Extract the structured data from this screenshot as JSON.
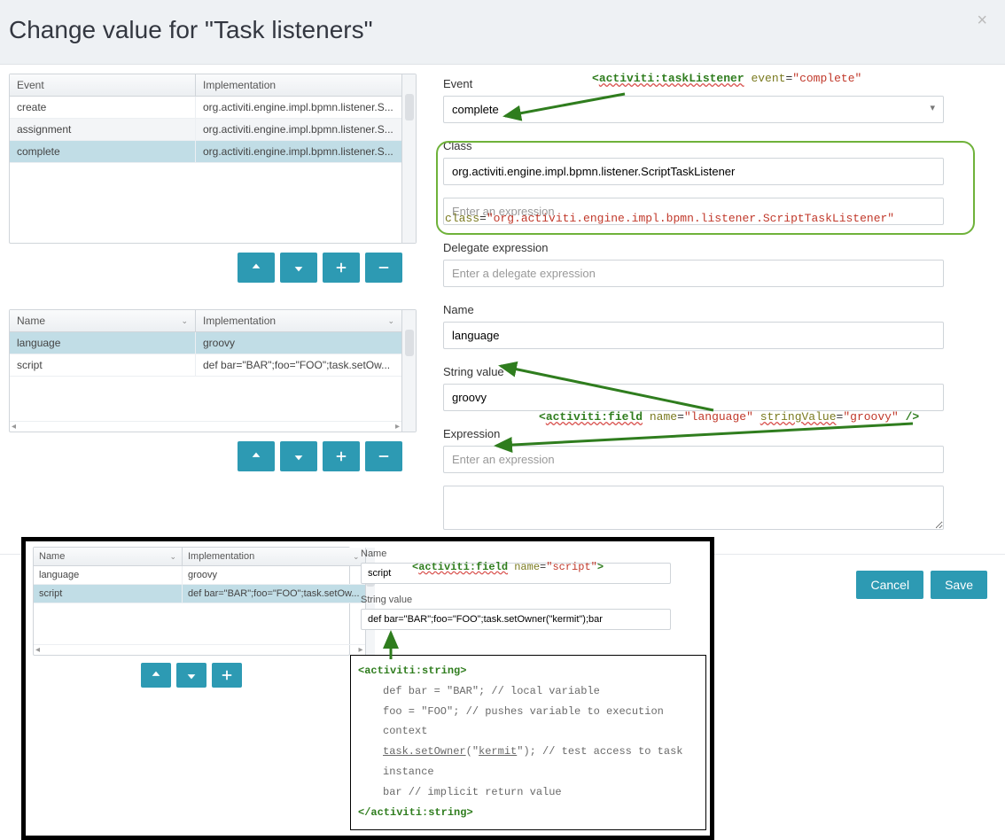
{
  "colors": {
    "primary": "#2d9ab3",
    "header_bg": "#eef1f4",
    "selected": "#c1dde6",
    "alt_row": "#f3f5f7",
    "green": "#6fb23a",
    "red": "#c1392b"
  },
  "dialog": {
    "title": "Change value for \"Task listeners\""
  },
  "grid1": {
    "cols": [
      "Event",
      "Implementation"
    ],
    "rows": [
      {
        "event": "create",
        "impl": "org.activiti.engine.impl.bpmn.listener.S...",
        "selected": false,
        "alt": false
      },
      {
        "event": "assignment",
        "impl": "org.activiti.engine.impl.bpmn.listener.S...",
        "selected": false,
        "alt": true
      },
      {
        "event": "complete",
        "impl": "org.activiti.engine.impl.bpmn.listener.S...",
        "selected": true,
        "alt": false
      }
    ]
  },
  "grid2": {
    "cols": [
      "Name",
      "Implementation"
    ],
    "rows": [
      {
        "name": "language",
        "impl": "groovy",
        "selected": true,
        "alt": false
      },
      {
        "name": "script",
        "impl": "def bar=\"BAR\";foo=\"FOO\";task.setOw...",
        "selected": false,
        "alt": false
      }
    ]
  },
  "form": {
    "event_label": "Event",
    "event_value": "complete",
    "class_label": "Class",
    "class_value": "org.activiti.engine.impl.bpmn.listener.ScriptTaskListener",
    "expr_placeholder": "Enter an expression",
    "delegate_label": "Delegate expression",
    "delegate_placeholder": "Enter a delegate expression",
    "name_label": "Name",
    "name_value": "language",
    "string_label": "String value",
    "string_value": "groovy",
    "expr2_label": "Expression",
    "expr2_placeholder": "Enter an expression"
  },
  "anno1": {
    "open": "<",
    "tag": "activiti:taskListener",
    "attr": "event",
    "eq": "=",
    "val": "\"complete\""
  },
  "anno2": {
    "attr": "class",
    "eq": "=",
    "val": "\"org.activiti.engine.impl.bpmn.listener.ScriptTaskListener\""
  },
  "anno3": {
    "open": "<",
    "tag": "activiti:field",
    "name_attr": "name",
    "name_val": "\"language\"",
    "sv_attr": "stringValue",
    "sv_val": "\"groovy\"",
    "close": " />"
  },
  "inset_grid": {
    "cols": [
      "Name",
      "Implementation"
    ],
    "rows": [
      {
        "name": "language",
        "impl": "groovy",
        "selected": false,
        "alt": false
      },
      {
        "name": "script",
        "impl": "def bar=\"BAR\";foo=\"FOO\";task.setOw...",
        "selected": true,
        "alt": false
      }
    ]
  },
  "inset_form": {
    "name_label": "Name",
    "name_value": "script",
    "sv_label": "String value",
    "sv_value": "def bar=\"BAR\";foo=\"FOO\";task.setOwner(\"kermit\");bar"
  },
  "inset_anno": {
    "open": "<",
    "tag": "activiti:field",
    "attr": "name",
    "val": "\"script\"",
    "close": ">"
  },
  "code": {
    "open": "<activiti:string>",
    "lines": [
      "def bar = \"BAR\"; // local variable",
      "foo = \"FOO\"; // pushes variable to execution context",
      "task.setOwner(\"kermit\"); // test access to task instance",
      "bar // implicit return value"
    ],
    "close": "</activiti:string>"
  },
  "footer": {
    "cancel": "Cancel",
    "save": "Save"
  }
}
